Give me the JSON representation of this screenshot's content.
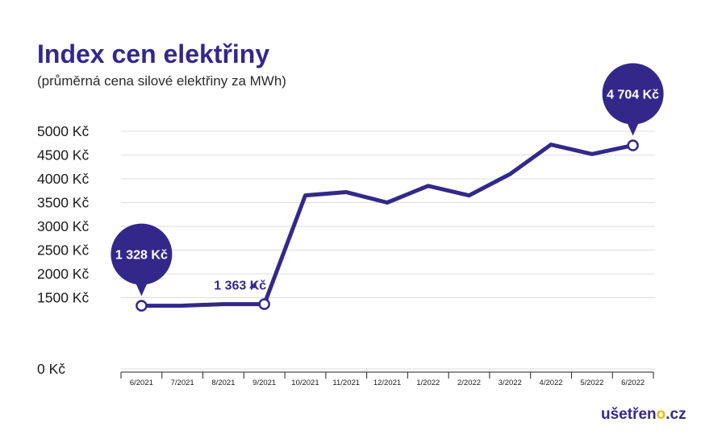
{
  "colors": {
    "primary": "#33288a",
    "accent": "#f5b800",
    "grid": "#dedede",
    "text": "#1a1a1a"
  },
  "logo": {
    "text_main": "ušetřen",
    "text_accent": "o",
    "text_tld": ".cz"
  },
  "chart_data": {
    "type": "line",
    "title": "Index cen elektřiny",
    "subtitle": "(průměrná cena silové elektřiny za MWh)",
    "categories": [
      "6/2021",
      "7/2021",
      "8/2021",
      "9/2021",
      "10/2021",
      "11/2021",
      "12/2021",
      "1/2022",
      "2/2022",
      "3/2022",
      "4/2022",
      "5/2022",
      "6/2022"
    ],
    "series": [
      {
        "values": [
          1328,
          1330,
          1363,
          1363,
          3650,
          3720,
          3500,
          3850,
          3650,
          4100,
          4720,
          4520,
          4704
        ]
      }
    ],
    "ylim": [
      0,
      5000
    ],
    "yticks": [
      0,
      1500,
      2000,
      2500,
      3000,
      3500,
      4000,
      4500,
      5000
    ],
    "ytick_labels": [
      "0 Kč",
      "1500 Kč",
      "2000 Kč",
      "2500 Kč",
      "3000 Kč",
      "3500 Kč",
      "4000 Kč",
      "4500 Kč",
      "5000 Kč"
    ],
    "grid": true,
    "annotations": [
      {
        "index": 0,
        "text": "1 328 Kč",
        "style": "bubble"
      },
      {
        "index": 3,
        "text": "1 363 Kč",
        "style": "label"
      },
      {
        "index": 12,
        "text": "4 704 Kč",
        "style": "bubble"
      }
    ]
  }
}
